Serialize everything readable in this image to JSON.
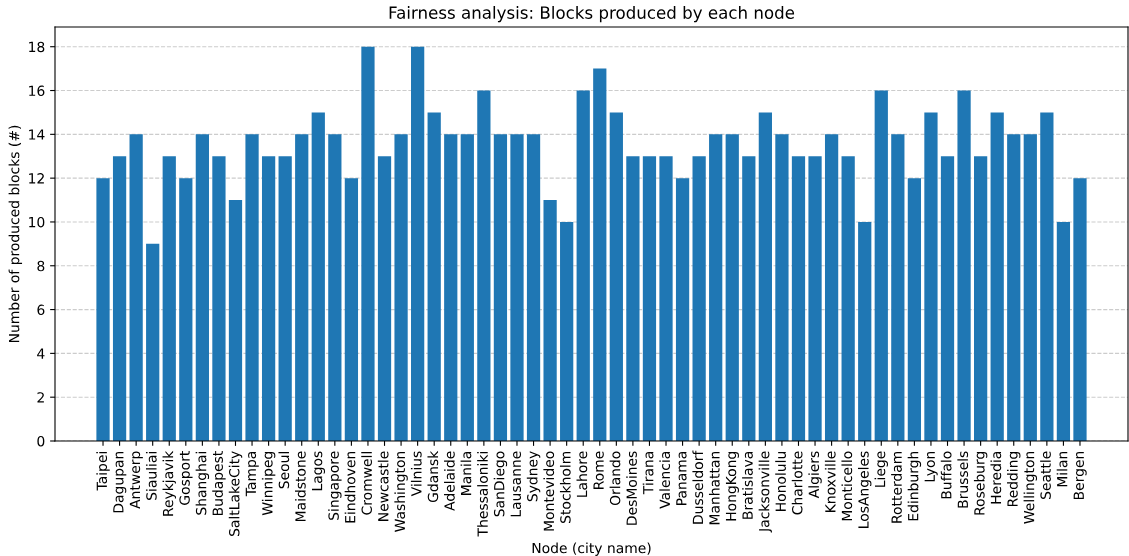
{
  "chart_data": {
    "type": "bar",
    "title": "Fairness analysis: Blocks produced by each node",
    "xlabel": "Node (city name)",
    "ylabel": "Number of produced blocks (#)",
    "categories": [
      "Taipei",
      "Dagupan",
      "Antwerp",
      "Siauliai",
      "Reykjavik",
      "Gosport",
      "Shanghai",
      "Budapest",
      "SaltLakeCity",
      "Tampa",
      "Winnipeg",
      "Seoul",
      "Maidstone",
      "Lagos",
      "Singapore",
      "Eindhoven",
      "Cromwell",
      "Newcastle",
      "Washington",
      "Vilnius",
      "Gdansk",
      "Adelaide",
      "Manila",
      "Thessaloniki",
      "SanDiego",
      "Lausanne",
      "Sydney",
      "Montevideo",
      "Stockholm",
      "Lahore",
      "Rome",
      "Orlando",
      "DesMoines",
      "Tirana",
      "Valencia",
      "Panama",
      "Dusseldorf",
      "Manhattan",
      "HongKong",
      "Bratislava",
      "Jacksonville",
      "Honolulu",
      "Charlotte",
      "Algiers",
      "Knoxville",
      "Monticello",
      "LosAngeles",
      "Liege",
      "Rotterdam",
      "Edinburgh",
      "Lyon",
      "Buffalo",
      "Brussels",
      "Roseburg",
      "Heredia",
      "Redding",
      "Wellington",
      "Seattle",
      "Milan",
      "Bergen"
    ],
    "values": [
      12,
      13,
      14,
      9,
      13,
      12,
      14,
      13,
      11,
      14,
      13,
      13,
      14,
      15,
      14,
      12,
      18,
      13,
      14,
      18,
      15,
      14,
      14,
      16,
      14,
      14,
      14,
      11,
      10,
      16,
      17,
      15,
      13,
      13,
      13,
      12,
      13,
      14,
      14,
      13,
      15,
      14,
      13,
      13,
      14,
      13,
      10,
      16,
      14,
      12,
      15,
      13,
      16,
      13,
      15,
      14,
      14,
      15,
      10,
      12
    ],
    "color": "#1f77b4",
    "ylim": [
      0,
      18.9
    ],
    "yticks": [
      0,
      2,
      4,
      6,
      8,
      10,
      12,
      14,
      16,
      18
    ],
    "grid": "y"
  }
}
